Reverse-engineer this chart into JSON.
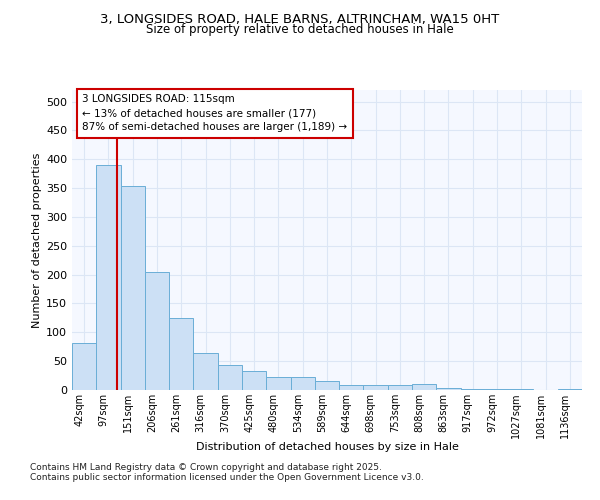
{
  "title_line1": "3, LONGSIDES ROAD, HALE BARNS, ALTRINCHAM, WA15 0HT",
  "title_line2": "Size of property relative to detached houses in Hale",
  "xlabel": "Distribution of detached houses by size in Hale",
  "ylabel": "Number of detached properties",
  "categories": [
    "42sqm",
    "97sqm",
    "151sqm",
    "206sqm",
    "261sqm",
    "316sqm",
    "370sqm",
    "425sqm",
    "480sqm",
    "534sqm",
    "589sqm",
    "644sqm",
    "698sqm",
    "753sqm",
    "808sqm",
    "863sqm",
    "917sqm",
    "972sqm",
    "1027sqm",
    "1081sqm",
    "1136sqm"
  ],
  "values": [
    82,
    390,
    353,
    205,
    124,
    65,
    44,
    33,
    22,
    23,
    15,
    8,
    9,
    9,
    10,
    3,
    1,
    1,
    1,
    0,
    1
  ],
  "bar_color": "#cce0f5",
  "bar_edge_color": "#6aaed6",
  "background_color": "#ffffff",
  "plot_bg_color": "#f5f8ff",
  "grid_color": "#dce6f5",
  "annotation_box_color": "#ffffff",
  "annotation_box_edge_color": "#cc0000",
  "subject_line_color": "#cc0000",
  "footer_line1": "Contains HM Land Registry data © Crown copyright and database right 2025.",
  "footer_line2": "Contains public sector information licensed under the Open Government Licence v3.0.",
  "ylim": [
    0,
    520
  ],
  "yticks": [
    0,
    50,
    100,
    150,
    200,
    250,
    300,
    350,
    400,
    450,
    500
  ]
}
